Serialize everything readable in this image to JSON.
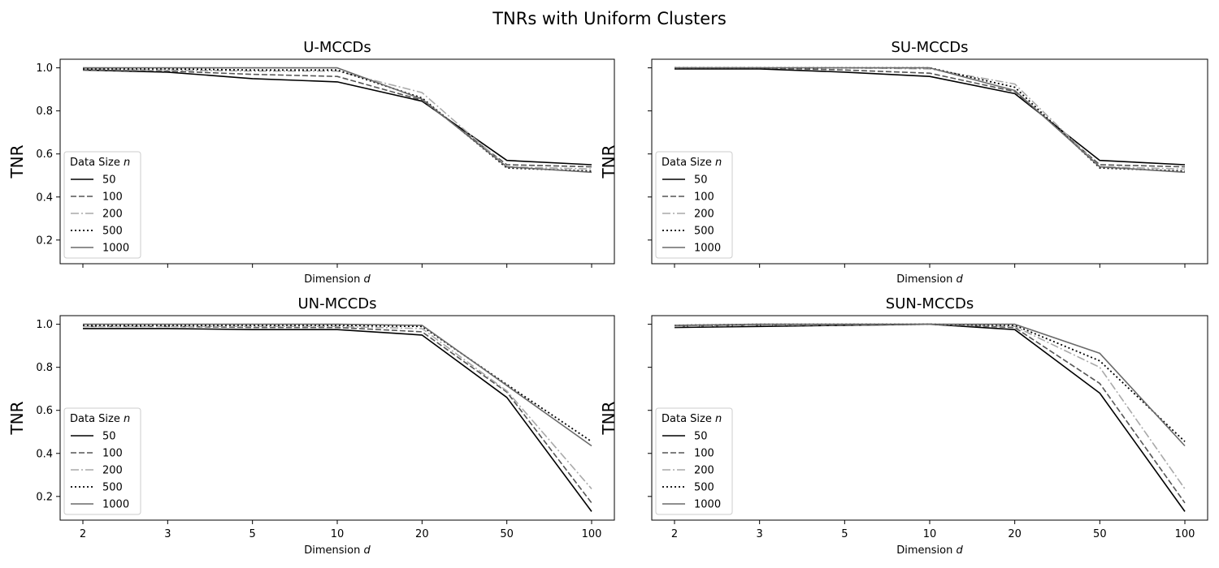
{
  "figure": {
    "suptitle": "TNRs with Uniform Clusters"
  },
  "styles": {
    "50": {
      "color": "#000000",
      "dash": "",
      "width": 1.6
    },
    "100": {
      "color": "#555555",
      "dash": "7,3",
      "width": 1.6
    },
    "200": {
      "color": "#a9a9a9",
      "dash": "10,3,2,3",
      "width": 1.6
    },
    "500": {
      "color": "#000000",
      "dash": "2,3",
      "width": 1.8
    },
    "1000": {
      "color": "#6a6a6a",
      "dash": "",
      "width": 1.6
    }
  },
  "chart_data": [
    {
      "type": "line",
      "title": "U-MCCDs",
      "xlabel": "Dimension d",
      "ylabel": "TNR",
      "x": [
        "2",
        "3",
        "5",
        "10",
        "20",
        "50",
        "100"
      ],
      "ylim": [
        0.09,
        1.04
      ],
      "yticks": [
        "0.2",
        "0.4",
        "0.6",
        "0.8",
        "1.0"
      ],
      "show_xticklabels": false,
      "show_yticklabels": true,
      "legend": {
        "title": "Data Size n",
        "position": "lower-left"
      },
      "series": [
        {
          "name": "50",
          "values": [
            0.99,
            0.98,
            0.95,
            0.935,
            0.845,
            0.57,
            0.55
          ]
        },
        {
          "name": "100",
          "values": [
            0.99,
            0.985,
            0.97,
            0.96,
            0.85,
            0.55,
            0.54
          ]
        },
        {
          "name": "200",
          "values": [
            0.995,
            0.99,
            0.985,
            0.985,
            0.885,
            0.54,
            0.53
          ]
        },
        {
          "name": "500",
          "values": [
            0.995,
            0.995,
            0.99,
            0.99,
            0.86,
            0.535,
            0.52
          ]
        },
        {
          "name": "1000",
          "values": [
            1.0,
            1.0,
            1.0,
            1.0,
            0.855,
            0.54,
            0.515
          ]
        }
      ]
    },
    {
      "type": "line",
      "title": "SU-MCCDs",
      "xlabel": "Dimension d",
      "ylabel": "TNR",
      "x": [
        "2",
        "3",
        "5",
        "10",
        "20",
        "50",
        "100"
      ],
      "ylim": [
        0.09,
        1.04
      ],
      "yticks": [
        "0.2",
        "0.4",
        "0.6",
        "0.8",
        "1.0"
      ],
      "show_xticklabels": false,
      "show_yticklabels": false,
      "legend": {
        "title": "Data Size n",
        "position": "lower-left"
      },
      "series": [
        {
          "name": "50",
          "values": [
            0.995,
            0.995,
            0.98,
            0.96,
            0.88,
            0.57,
            0.55
          ]
        },
        {
          "name": "100",
          "values": [
            1.0,
            1.0,
            0.99,
            0.975,
            0.89,
            0.55,
            0.54
          ]
        },
        {
          "name": "200",
          "values": [
            1.0,
            1.0,
            1.0,
            0.995,
            0.925,
            0.54,
            0.53
          ]
        },
        {
          "name": "500",
          "values": [
            1.0,
            1.0,
            1.0,
            1.0,
            0.91,
            0.535,
            0.52
          ]
        },
        {
          "name": "1000",
          "values": [
            1.0,
            1.0,
            1.0,
            1.0,
            0.895,
            0.54,
            0.515
          ]
        }
      ]
    },
    {
      "type": "line",
      "title": "UN-MCCDs",
      "xlabel": "Dimension d",
      "ylabel": "TNR",
      "x": [
        "2",
        "3",
        "5",
        "10",
        "20",
        "50",
        "100"
      ],
      "ylim": [
        0.09,
        1.04
      ],
      "yticks": [
        "0.2",
        "0.4",
        "0.6",
        "0.8",
        "1.0"
      ],
      "show_xticklabels": true,
      "show_yticklabels": true,
      "legend": {
        "title": "Data Size n",
        "position": "lower-left"
      },
      "series": [
        {
          "name": "50",
          "values": [
            0.98,
            0.98,
            0.975,
            0.975,
            0.95,
            0.66,
            0.13
          ]
        },
        {
          "name": "100",
          "values": [
            0.99,
            0.99,
            0.985,
            0.985,
            0.965,
            0.685,
            0.17
          ]
        },
        {
          "name": "200",
          "values": [
            0.99,
            0.99,
            0.99,
            0.99,
            0.98,
            0.69,
            0.235
          ]
        },
        {
          "name": "500",
          "values": [
            0.995,
            0.995,
            0.995,
            0.995,
            0.99,
            0.72,
            0.455
          ]
        },
        {
          "name": "1000",
          "values": [
            1.0,
            1.0,
            1.0,
            1.0,
            0.995,
            0.715,
            0.435
          ]
        }
      ]
    },
    {
      "type": "line",
      "title": "SUN-MCCDs",
      "xlabel": "Dimension d",
      "ylabel": "TNR",
      "x": [
        "2",
        "3",
        "5",
        "10",
        "20",
        "50",
        "100"
      ],
      "ylim": [
        0.09,
        1.04
      ],
      "yticks": [
        "0.2",
        "0.4",
        "0.6",
        "0.8",
        "1.0"
      ],
      "show_xticklabels": true,
      "show_yticklabels": false,
      "legend": {
        "title": "Data Size n",
        "position": "lower-left"
      },
      "series": [
        {
          "name": "50",
          "values": [
            0.985,
            0.99,
            0.995,
            1.0,
            0.975,
            0.68,
            0.13
          ]
        },
        {
          "name": "100",
          "values": [
            0.99,
            0.995,
            0.995,
            1.0,
            0.985,
            0.725,
            0.17
          ]
        },
        {
          "name": "200",
          "values": [
            0.99,
            0.995,
            1.0,
            1.0,
            0.99,
            0.8,
            0.235
          ]
        },
        {
          "name": "500",
          "values": [
            0.995,
            1.0,
            1.0,
            1.0,
            0.995,
            0.83,
            0.455
          ]
        },
        {
          "name": "1000",
          "values": [
            0.995,
            1.0,
            1.0,
            1.0,
            1.0,
            0.865,
            0.435
          ]
        }
      ]
    }
  ]
}
